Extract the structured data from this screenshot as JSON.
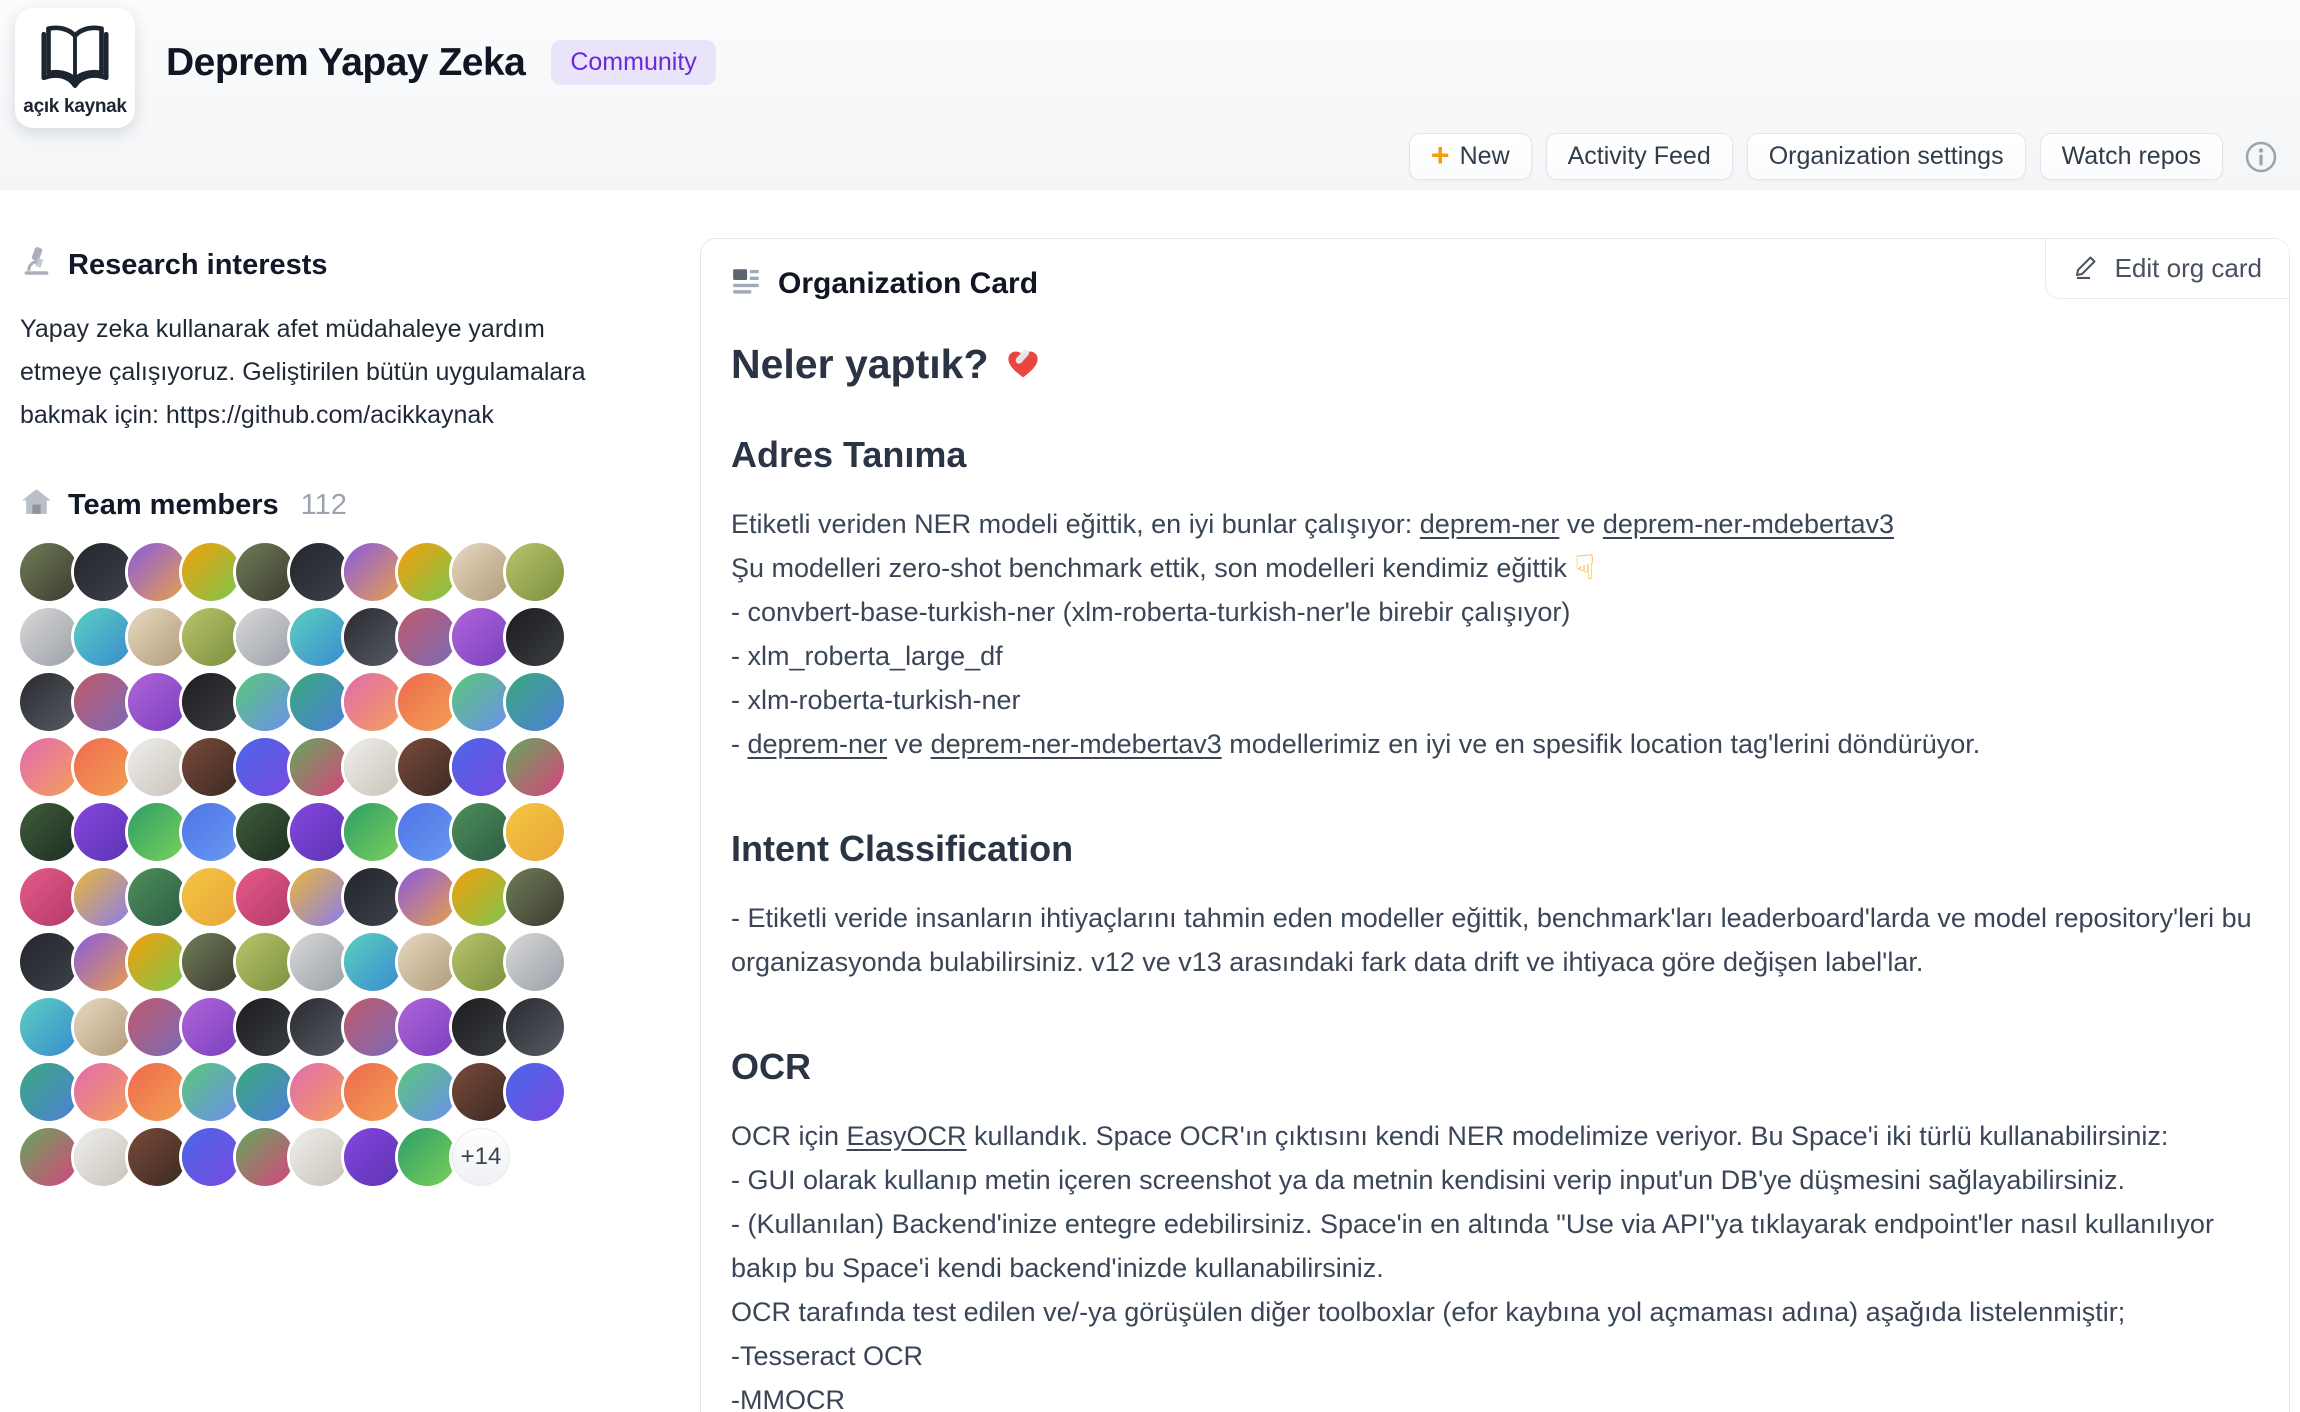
{
  "header": {
    "logo": {
      "icon": "open-book-icon",
      "caption": "açık kaynak"
    },
    "title": "Deprem Yapay Zeka",
    "badge": "Community",
    "actions": [
      {
        "label": "New",
        "icon": "plus-icon"
      },
      {
        "label": "Activity Feed"
      },
      {
        "label": "Organization settings"
      },
      {
        "label": "Watch repos"
      }
    ],
    "info_icon": "info-icon"
  },
  "sidebar": {
    "research": {
      "icon": "microscope-icon",
      "title": "Research interests",
      "description": "Yapay zeka kullanarak afet müdahaleye yardım etmeye çalışıyoruz. Geliştirilen bütün uygulamalara bakmak için: https://github.com/acikkaynak"
    },
    "team": {
      "icon": "house-icon",
      "title": "Team members",
      "count": "112",
      "visible_avatars": 98,
      "more_label": "+14",
      "avatar_palette": [
        [
          "#6f7d56",
          "#3c3a31"
        ],
        [
          "#e8d9c0",
          "#b09a7a"
        ],
        [
          "#2b2b31",
          "#565b64"
        ],
        [
          "#58c977",
          "#6e8df0"
        ],
        [
          "#efefed",
          "#c9c2b8"
        ],
        [
          "#3f5d3a",
          "#1e2d22"
        ],
        [
          "#4e8f5a",
          "#2c5c44"
        ],
        [
          "#23252b",
          "#3d4149"
        ],
        [
          "#b9c46a",
          "#7a8f3f"
        ],
        [
          "#c05a6b",
          "#7a6ab8"
        ],
        [
          "#39a97c",
          "#4f7fd9"
        ],
        [
          "#7a4a3a",
          "#3a2a22"
        ],
        [
          "#8646e0",
          "#5a34b0"
        ],
        [
          "#f5c542",
          "#e8a63a"
        ],
        [
          "#8a5ae0",
          "#e8a04a"
        ],
        [
          "#d8d8d8",
          "#9aa0a8"
        ],
        [
          "#b065d8",
          "#7a3fc0"
        ],
        [
          "#e06ab0",
          "#f5a05a"
        ],
        [
          "#4a66e8",
          "#7a4ae0"
        ],
        [
          "#2d9e68",
          "#7ad05a"
        ],
        [
          "#e85a8a",
          "#b03a6a"
        ],
        [
          "#f59e0b",
          "#7ac74f"
        ],
        [
          "#5ad0c0",
          "#3a8ad0"
        ],
        [
          "#1c1d20",
          "#3a3d42"
        ],
        [
          "#ef6a4e",
          "#f0a054"
        ],
        [
          "#64a85c",
          "#d8447e"
        ],
        [
          "#4f74e8",
          "#6a9af0"
        ],
        [
          "#e8b83a",
          "#8a7af0"
        ]
      ]
    }
  },
  "card": {
    "icon": "org-card-icon",
    "title": "Organization Card",
    "edit_button": "Edit org card",
    "sections": [
      {
        "level": 2,
        "heading": "Neler yaptık?",
        "heading_icon": "mending-heart-icon",
        "lines": []
      },
      {
        "level": 3,
        "heading": "Adres Tanıma",
        "lines": [
          [
            {
              "t": "Etiketli veriden NER modeli eğittik, en iyi bunlar çalışıyor: "
            },
            {
              "t": "deprem-ner",
              "link": true
            },
            {
              "t": " ve "
            },
            {
              "t": "deprem-ner-mdebertav3",
              "link": true
            }
          ],
          [
            {
              "t": "Şu modelleri zero-shot benchmark ettik, son modelleri kendimiz eğittik "
            },
            {
              "icon": "point-down-icon"
            }
          ],
          [
            {
              "t": "- convbert-base-turkish-ner (xlm-roberta-turkish-ner'le birebir çalışıyor)"
            }
          ],
          [
            {
              "t": "- xlm_roberta_large_df"
            }
          ],
          [
            {
              "t": "- xlm-roberta-turkish-ner"
            }
          ],
          [
            {
              "t": "- "
            },
            {
              "t": "deprem-ner",
              "link": true
            },
            {
              "t": " ve "
            },
            {
              "t": "deprem-ner-mdebertav3",
              "link": true
            },
            {
              "t": " modellerimiz en iyi ve en spesifik location tag'lerini döndürüyor."
            }
          ]
        ]
      },
      {
        "level": 3,
        "heading": "Intent Classification",
        "lines": [
          [
            {
              "t": "- Etiketli veride insanların ihtiyaçlarını tahmin eden modeller eğittik, benchmark'ları leaderboard'larda ve model repository'leri bu organizasyonda bulabilirsiniz. v12 ve v13 arasındaki fark data drift ve ihtiyaca göre değişen label'lar."
            }
          ]
        ]
      },
      {
        "level": 3,
        "heading": "OCR",
        "lines": [
          [
            {
              "t": "OCR için "
            },
            {
              "t": "EasyOCR",
              "link": true
            },
            {
              "t": " kullandık. Space OCR'ın çıktısını kendi NER modelimize veriyor. Bu Space'i iki türlü kullanabilirsiniz:"
            }
          ],
          [
            {
              "t": "- GUI olarak kullanıp metin içeren screenshot ya da metnin kendisini verip input'un DB'ye düşmesini sağlayabilirsiniz."
            }
          ],
          [
            {
              "t": "- (Kullanılan) Backend'inize entegre edebilirsiniz. Space'in en altında \"Use via API\"ya tıklayarak endpoint'ler nasıl kullanılıyor bakıp bu Space'i kendi backend'inizde kullanabilirsiniz."
            }
          ],
          [
            {
              "t": "OCR tarafında test edilen ve/-ya görüşülen diğer toolboxlar (efor kaybına yol açmaması adına) aşağıda listelenmiştir;"
            }
          ],
          [
            {
              "t": "-Tesseract OCR"
            }
          ],
          [
            {
              "t": "-MMOCR"
            }
          ]
        ]
      }
    ]
  },
  "colors": {
    "badge_bg": "#e9e4fa",
    "badge_text": "#6d28d9",
    "plus_accent": "#f59e0b",
    "heart_red": "#e8463f",
    "hand_amber": "#f2b12e",
    "card_border": "#e5e7eb"
  }
}
